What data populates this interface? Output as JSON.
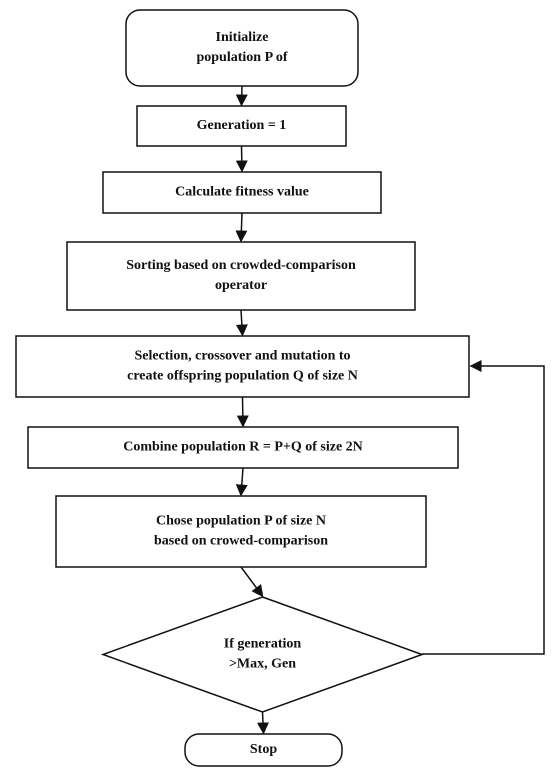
{
  "nodes": [
    {
      "shape": "terminal",
      "lines": [
        "Initialize",
        "population P of"
      ]
    },
    {
      "shape": "process",
      "lines": [
        "Generation = 1"
      ]
    },
    {
      "shape": "process",
      "lines": [
        "Calculate fitness value"
      ]
    },
    {
      "shape": "process",
      "lines": [
        "Sorting based on crowded-comparison",
        "operator"
      ]
    },
    {
      "shape": "process",
      "lines": [
        "Selection, crossover and mutation to",
        "create offspring population Q of size N"
      ]
    },
    {
      "shape": "process",
      "lines": [
        "Combine population R = P+Q of size 2N"
      ]
    },
    {
      "shape": "process",
      "lines": [
        "Chose population P of size N",
        "based on crowed-comparison"
      ]
    },
    {
      "shape": "decision",
      "lines": [
        "If generation",
        ">Max, Gen"
      ]
    },
    {
      "shape": "terminal",
      "lines": [
        "Stop"
      ]
    }
  ]
}
